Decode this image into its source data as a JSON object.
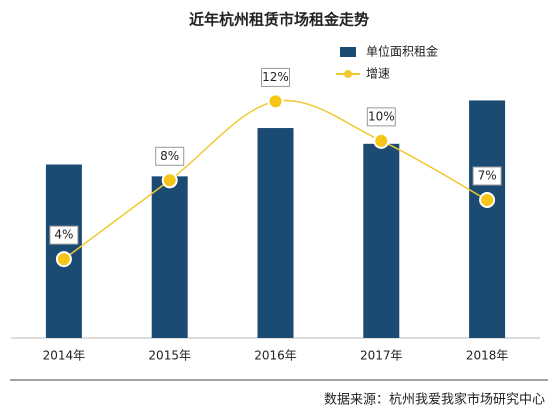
{
  "chart_data": {
    "type": "bar-line",
    "title": "近年杭州租赁市场租金走势",
    "categories": [
      "2014年",
      "2015年",
      "2016年",
      "2017年",
      "2018年"
    ],
    "series": [
      {
        "name": "单位面积租金",
        "type": "bar",
        "color": "#1b4a72",
        "values": [
          176,
          164,
          213,
          197,
          241
        ]
      },
      {
        "name": "增速",
        "type": "line",
        "axis": "y2",
        "color": "#f2c830",
        "values": [
          4,
          8,
          12,
          10,
          7
        ],
        "value_labels": [
          "4%",
          "8%",
          "12%",
          "10%",
          "7%"
        ]
      }
    ],
    "ylim": [
      0,
      280
    ],
    "y2lim": [
      0,
      14
    ],
    "legend": "top-right",
    "source": "数据来源：杭州我爱我家市场研究中心"
  }
}
